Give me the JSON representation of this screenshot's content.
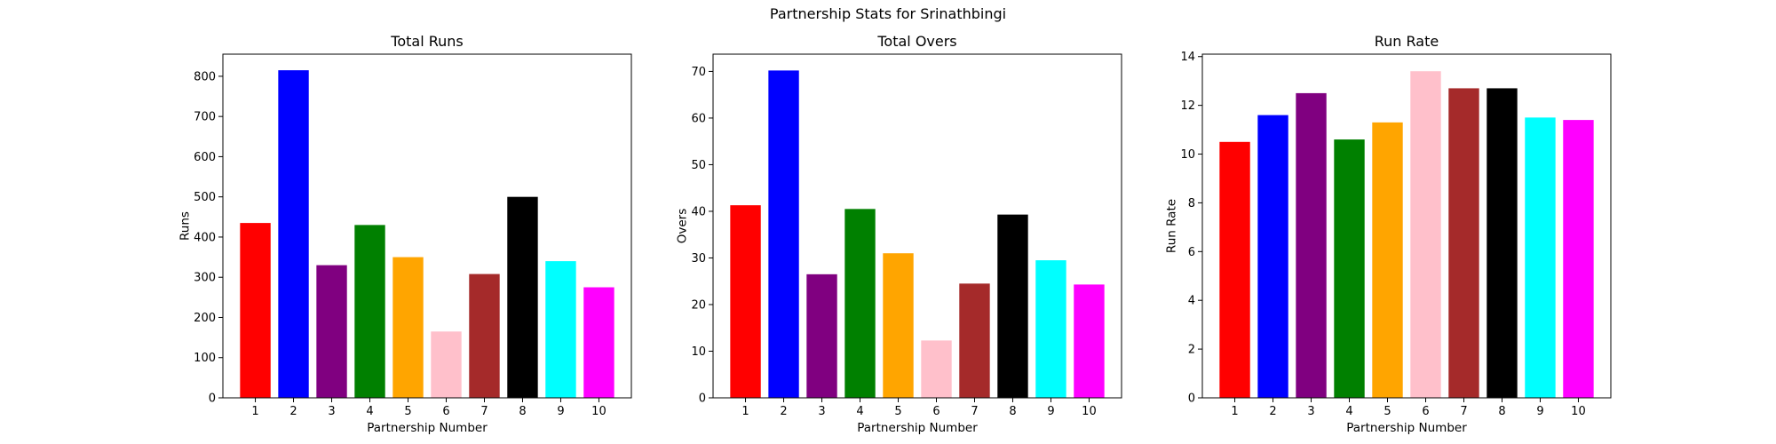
{
  "figure": {
    "suptitle": "Partnership Stats for Srinathbingi"
  },
  "chart_data": [
    {
      "type": "bar",
      "title": "Total Runs",
      "xlabel": "Partnership Number",
      "ylabel": "Runs",
      "categories": [
        "1",
        "2",
        "3",
        "4",
        "5",
        "6",
        "7",
        "8",
        "9",
        "10"
      ],
      "values": [
        435,
        815,
        330,
        430,
        350,
        165,
        308,
        500,
        340,
        275
      ],
      "colors": [
        "#ff0000",
        "#0000ff",
        "#800080",
        "#008000",
        "#ffa500",
        "#ffc0cb",
        "#a52a2a",
        "#000000",
        "#00ffff",
        "#ff00ff"
      ],
      "ylim": [
        0,
        855
      ],
      "yticks": [
        0,
        100,
        200,
        300,
        400,
        500,
        600,
        700,
        800
      ],
      "grid": false
    },
    {
      "type": "bar",
      "title": "Total Overs",
      "xlabel": "Partnership Number",
      "ylabel": "Overs",
      "categories": [
        "1",
        "2",
        "3",
        "4",
        "5",
        "6",
        "7",
        "8",
        "9",
        "10"
      ],
      "values": [
        41.3,
        70.2,
        26.5,
        40.5,
        31.0,
        12.3,
        24.5,
        39.3,
        29.5,
        24.3
      ],
      "colors": [
        "#ff0000",
        "#0000ff",
        "#800080",
        "#008000",
        "#ffa500",
        "#ffc0cb",
        "#a52a2a",
        "#000000",
        "#00ffff",
        "#ff00ff"
      ],
      "ylim": [
        0,
        73.7
      ],
      "yticks": [
        0,
        10,
        20,
        30,
        40,
        50,
        60,
        70
      ],
      "grid": false
    },
    {
      "type": "bar",
      "title": "Run Rate",
      "xlabel": "Partnership Number",
      "ylabel": "Run Rate",
      "categories": [
        "1",
        "2",
        "3",
        "4",
        "5",
        "6",
        "7",
        "8",
        "9",
        "10"
      ],
      "values": [
        10.5,
        11.6,
        12.5,
        10.6,
        11.3,
        13.4,
        12.7,
        12.7,
        11.5,
        11.4
      ],
      "colors": [
        "#ff0000",
        "#0000ff",
        "#800080",
        "#008000",
        "#ffa500",
        "#ffc0cb",
        "#a52a2a",
        "#000000",
        "#00ffff",
        "#ff00ff"
      ],
      "ylim": [
        0,
        14.1
      ],
      "yticks": [
        0,
        2,
        4,
        6,
        8,
        10,
        12,
        14
      ],
      "grid": false
    }
  ]
}
